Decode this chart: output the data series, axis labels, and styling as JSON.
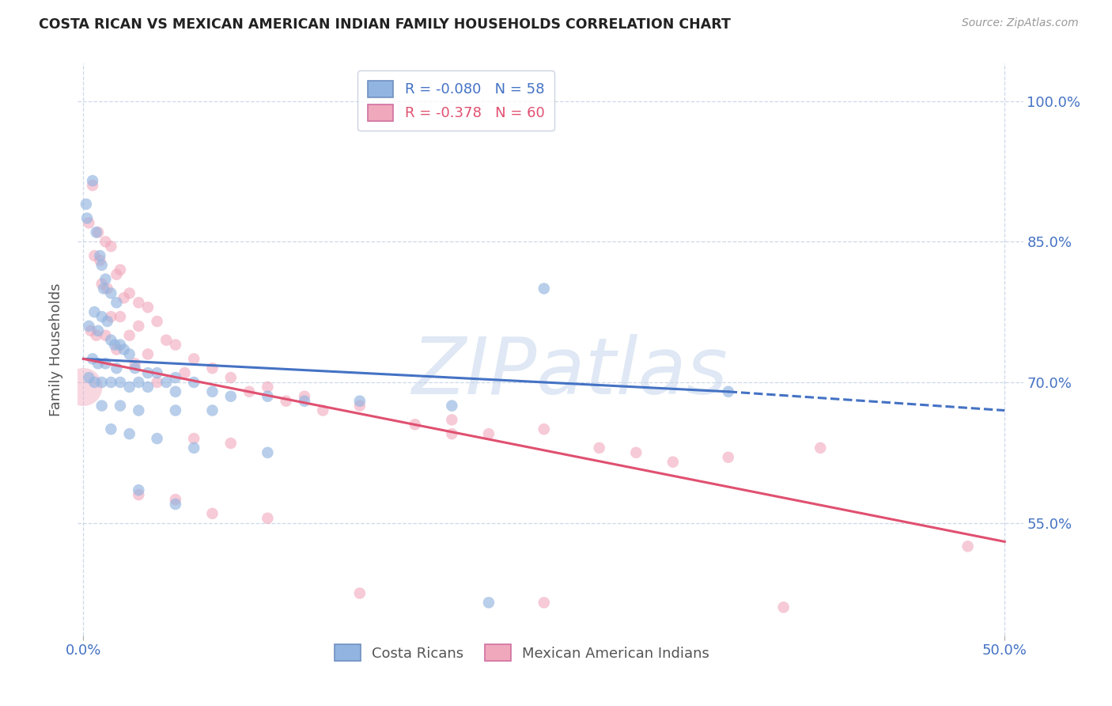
{
  "title": "COSTA RICAN VS MEXICAN AMERICAN INDIAN FAMILY HOUSEHOLDS CORRELATION CHART",
  "source": "Source: ZipAtlas.com",
  "ylabel": "Family Households",
  "y_ticks": [
    55.0,
    70.0,
    85.0,
    100.0
  ],
  "x_lim": [
    -0.3,
    51.0
  ],
  "y_lim": [
    43.0,
    104.0
  ],
  "color_blue": "#92b4e0",
  "color_pink": "#f0a8bc",
  "color_blue_line": "#4472c4",
  "color_pink_line": "#e05070",
  "color_axis_labels": "#4472c4",
  "watermark": "ZIPatlas",
  "blue_scatter": [
    [
      0.15,
      89.0
    ],
    [
      0.5,
      91.5
    ],
    [
      0.2,
      87.5
    ],
    [
      0.7,
      86.0
    ],
    [
      0.9,
      83.5
    ],
    [
      1.0,
      82.5
    ],
    [
      1.2,
      81.0
    ],
    [
      1.1,
      80.0
    ],
    [
      1.5,
      79.5
    ],
    [
      1.8,
      78.5
    ],
    [
      0.6,
      77.5
    ],
    [
      1.0,
      77.0
    ],
    [
      1.3,
      76.5
    ],
    [
      0.3,
      76.0
    ],
    [
      0.8,
      75.5
    ],
    [
      1.5,
      74.5
    ],
    [
      2.0,
      74.0
    ],
    [
      1.7,
      74.0
    ],
    [
      2.2,
      73.5
    ],
    [
      2.5,
      73.0
    ],
    [
      0.5,
      72.5
    ],
    [
      0.8,
      72.0
    ],
    [
      1.2,
      72.0
    ],
    [
      1.8,
      71.5
    ],
    [
      2.8,
      71.5
    ],
    [
      3.5,
      71.0
    ],
    [
      4.0,
      71.0
    ],
    [
      5.0,
      70.5
    ],
    [
      0.3,
      70.5
    ],
    [
      0.6,
      70.0
    ],
    [
      1.0,
      70.0
    ],
    [
      1.5,
      70.0
    ],
    [
      2.0,
      70.0
    ],
    [
      3.0,
      70.0
    ],
    [
      4.5,
      70.0
    ],
    [
      6.0,
      70.0
    ],
    [
      2.5,
      69.5
    ],
    [
      3.5,
      69.5
    ],
    [
      5.0,
      69.0
    ],
    [
      7.0,
      69.0
    ],
    [
      8.0,
      68.5
    ],
    [
      10.0,
      68.5
    ],
    [
      12.0,
      68.0
    ],
    [
      15.0,
      68.0
    ],
    [
      1.0,
      67.5
    ],
    [
      2.0,
      67.5
    ],
    [
      3.0,
      67.0
    ],
    [
      5.0,
      67.0
    ],
    [
      7.0,
      67.0
    ],
    [
      20.0,
      67.5
    ],
    [
      25.0,
      80.0
    ],
    [
      35.0,
      69.0
    ],
    [
      1.5,
      65.0
    ],
    [
      2.5,
      64.5
    ],
    [
      4.0,
      64.0
    ],
    [
      6.0,
      63.0
    ],
    [
      10.0,
      62.5
    ],
    [
      3.0,
      58.5
    ],
    [
      5.0,
      57.0
    ],
    [
      22.0,
      46.5
    ]
  ],
  "pink_scatter": [
    [
      0.5,
      91.0
    ],
    [
      0.3,
      87.0
    ],
    [
      0.8,
      86.0
    ],
    [
      1.2,
      85.0
    ],
    [
      1.5,
      84.5
    ],
    [
      0.6,
      83.5
    ],
    [
      0.9,
      83.0
    ],
    [
      2.0,
      82.0
    ],
    [
      1.8,
      81.5
    ],
    [
      1.0,
      80.5
    ],
    [
      1.3,
      80.0
    ],
    [
      2.5,
      79.5
    ],
    [
      2.2,
      79.0
    ],
    [
      3.0,
      78.5
    ],
    [
      3.5,
      78.0
    ],
    [
      1.5,
      77.0
    ],
    [
      2.0,
      77.0
    ],
    [
      4.0,
      76.5
    ],
    [
      3.0,
      76.0
    ],
    [
      0.4,
      75.5
    ],
    [
      0.7,
      75.0
    ],
    [
      1.2,
      75.0
    ],
    [
      2.5,
      75.0
    ],
    [
      4.5,
      74.5
    ],
    [
      5.0,
      74.0
    ],
    [
      1.8,
      73.5
    ],
    [
      3.5,
      73.0
    ],
    [
      6.0,
      72.5
    ],
    [
      2.8,
      72.0
    ],
    [
      7.0,
      71.5
    ],
    [
      5.5,
      71.0
    ],
    [
      8.0,
      70.5
    ],
    [
      4.0,
      70.0
    ],
    [
      10.0,
      69.5
    ],
    [
      9.0,
      69.0
    ],
    [
      12.0,
      68.5
    ],
    [
      11.0,
      68.0
    ],
    [
      15.0,
      67.5
    ],
    [
      13.0,
      67.0
    ],
    [
      20.0,
      66.0
    ],
    [
      18.0,
      65.5
    ],
    [
      25.0,
      65.0
    ],
    [
      22.0,
      64.5
    ],
    [
      6.0,
      64.0
    ],
    [
      8.0,
      63.5
    ],
    [
      28.0,
      63.0
    ],
    [
      30.0,
      62.5
    ],
    [
      35.0,
      62.0
    ],
    [
      32.0,
      61.5
    ],
    [
      20.0,
      64.5
    ],
    [
      40.0,
      63.0
    ],
    [
      3.0,
      58.0
    ],
    [
      5.0,
      57.5
    ],
    [
      7.0,
      56.0
    ],
    [
      10.0,
      55.5
    ],
    [
      15.0,
      47.5
    ],
    [
      25.0,
      46.5
    ],
    [
      48.0,
      52.5
    ],
    [
      38.0,
      46.0
    ]
  ],
  "blue_line_x": [
    0,
    35,
    50
  ],
  "blue_line_y": [
    72.5,
    69.0,
    67.0
  ],
  "blue_solid_idx": 2,
  "pink_line_x": [
    0,
    50
  ],
  "pink_line_y": [
    72.5,
    53.0
  ],
  "large_pink_x": 0.0,
  "large_pink_y": 69.5,
  "large_pink_size": 1200
}
